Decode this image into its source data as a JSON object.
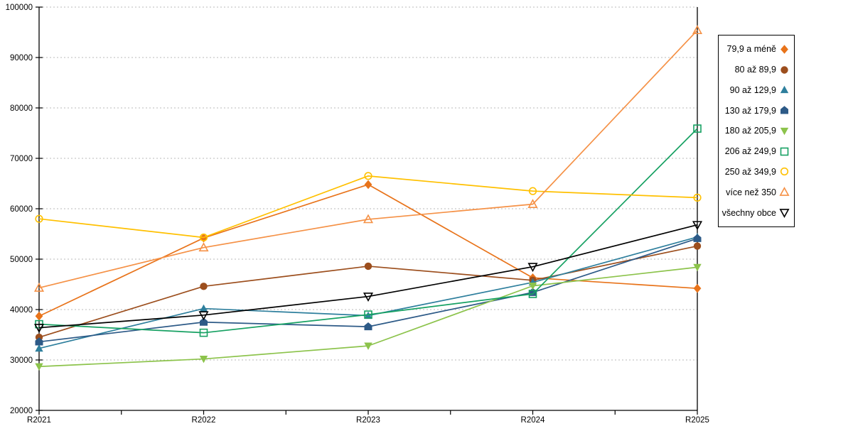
{
  "chart_data": {
    "type": "line",
    "title": "",
    "xlabel": "",
    "ylabel": "",
    "x_categories": [
      "R2021",
      "R2022",
      "R2023",
      "R2024",
      "R2025"
    ],
    "y_axis": {
      "min": 20000,
      "max": 100000,
      "step": 10000,
      "tick_labels": [
        "20000",
        "30000",
        "40000",
        "50000",
        "60000",
        "70000",
        "80000",
        "90000",
        "100000"
      ]
    },
    "grid": "horizontal-dashed",
    "legend_position": "right",
    "series": [
      {
        "name": "79,9 a méně",
        "marker": "diamond",
        "style": "filled",
        "color": "#E8731A",
        "values": [
          38700,
          54200,
          64800,
          46300,
          44200
        ]
      },
      {
        "name": "80 až 89,9",
        "marker": "circle",
        "style": "filled",
        "color": "#9C4E1D",
        "values": [
          34500,
          44600,
          48600,
          45800,
          52600
        ]
      },
      {
        "name": "90 až 129,9",
        "marker": "triangle-up",
        "style": "filled",
        "color": "#2E7F9D",
        "values": [
          32300,
          40200,
          38800,
          45400,
          54400
        ]
      },
      {
        "name": "130 až 179,9",
        "marker": "pentagon",
        "style": "filled",
        "color": "#2D5A87",
        "values": [
          33600,
          37500,
          36600,
          43400,
          54100
        ]
      },
      {
        "name": "180 až 205,9",
        "marker": "triangle-down",
        "style": "filled",
        "color": "#8CC34B",
        "values": [
          28700,
          30200,
          32800,
          44700,
          48400
        ]
      },
      {
        "name": "206 až 249,9",
        "marker": "square",
        "style": "open",
        "color": "#17A163",
        "values": [
          37100,
          35400,
          39000,
          43100,
          75900
        ]
      },
      {
        "name": "250 až 349,9",
        "marker": "circle",
        "style": "open",
        "color": "#FFC000",
        "values": [
          58000,
          54300,
          66500,
          63500,
          62200
        ]
      },
      {
        "name": "více než 350",
        "marker": "triangle-up",
        "style": "open",
        "color": "#F59146",
        "values": [
          44300,
          52300,
          57900,
          60900,
          95400
        ]
      },
      {
        "name": "všechny obce",
        "marker": "triangle-down",
        "style": "open",
        "color": "#000000",
        "values": [
          36400,
          38900,
          42600,
          48500,
          56800
        ]
      }
    ]
  }
}
